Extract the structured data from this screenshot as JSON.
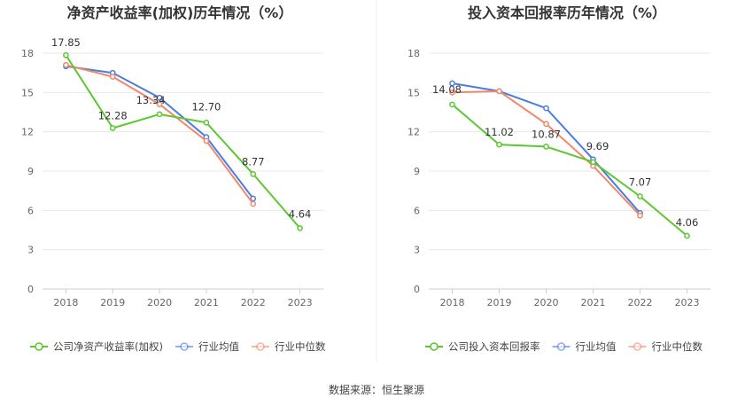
{
  "chart_data": [
    {
      "type": "line",
      "title": "净资产收益率(加权)历年情况（%）",
      "categories": [
        "2018",
        "2019",
        "2020",
        "2021",
        "2022",
        "2023"
      ],
      "ylim": [
        0,
        18
      ],
      "yticks": [
        0,
        3,
        6,
        9,
        12,
        15,
        18
      ],
      "series": [
        {
          "name": "公司净资产收益率(加权)",
          "color": "#5dc731",
          "values": [
            17.85,
            12.28,
            13.34,
            12.7,
            8.77,
            4.64
          ],
          "labels": [
            "17.85",
            "12.28",
            "13.34",
            "12.70",
            "8.77",
            "4.64"
          ]
        },
        {
          "name": "行业均值",
          "color": "#4a7de0",
          "values": [
            17.0,
            16.5,
            14.6,
            11.6,
            6.9,
            null
          ]
        },
        {
          "name": "行业中位数",
          "color": "#f0896b",
          "values": [
            17.1,
            16.2,
            14.1,
            11.3,
            6.5,
            null
          ]
        }
      ]
    },
    {
      "type": "line",
      "title": "投入资本回报率历年情况（%）",
      "categories": [
        "2018",
        "2019",
        "2020",
        "2021",
        "2022",
        "2023"
      ],
      "ylim": [
        0,
        18
      ],
      "yticks": [
        0,
        3,
        6,
        9,
        12,
        15,
        18
      ],
      "series": [
        {
          "name": "公司投入资本回报率",
          "color": "#5dc731",
          "values": [
            14.08,
            11.02,
            10.87,
            9.69,
            7.07,
            4.06
          ],
          "labels": [
            "14.08",
            "11.02",
            "10.87",
            "9.69",
            "7.07",
            "4.06"
          ]
        },
        {
          "name": "行业均值",
          "color": "#4a7de0",
          "values": [
            15.7,
            15.1,
            13.8,
            9.9,
            5.8,
            null
          ]
        },
        {
          "name": "行业中位数",
          "color": "#f0896b",
          "values": [
            15.0,
            15.1,
            12.6,
            9.4,
            5.6,
            null
          ]
        }
      ]
    }
  ],
  "footer": {
    "source": "数据来源：恒生聚源"
  }
}
